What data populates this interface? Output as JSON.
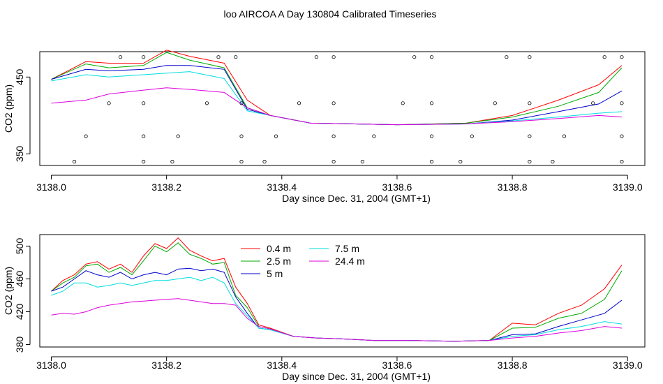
{
  "figure": {
    "title": "loo AIRCOA A  Day 130804  Calibrated Timeseries"
  },
  "chart_data": [
    {
      "type": "line",
      "xlabel": "Day since Dec. 31, 2004 (GMT+1)",
      "ylabel": "CO2 (ppm)",
      "xlim": [
        3137.98,
        3139.03
      ],
      "ylim": [
        335,
        483
      ],
      "x_ticks": [
        "3138.0",
        "3138.2",
        "3138.4",
        "3138.6",
        "3138.8",
        "3139.0"
      ],
      "y_ticks": [
        "350",
        "450"
      ],
      "grid": false,
      "series": [
        {
          "color": "#ff0000",
          "x": [
            3138.0,
            3138.06,
            3138.1,
            3138.16,
            3138.2,
            3138.24,
            3138.3,
            3138.34,
            3138.38,
            3138.45,
            3138.6,
            3138.72,
            3138.8,
            3138.88,
            3138.95,
            3138.99
          ],
          "values": [
            447,
            470,
            468,
            468,
            485,
            477,
            468,
            420,
            400,
            390,
            388,
            390,
            400,
            420,
            440,
            465
          ]
        },
        {
          "color": "#00aa00",
          "x": [
            3138.0,
            3138.06,
            3138.1,
            3138.16,
            3138.2,
            3138.24,
            3138.3,
            3138.34,
            3138.38,
            3138.45,
            3138.6,
            3138.72,
            3138.8,
            3138.88,
            3138.95,
            3138.99
          ],
          "values": [
            447,
            467,
            462,
            465,
            482,
            472,
            462,
            410,
            400,
            390,
            388,
            390,
            398,
            412,
            430,
            462
          ]
        },
        {
          "color": "#0000cc",
          "x": [
            3138.0,
            3138.06,
            3138.1,
            3138.16,
            3138.2,
            3138.24,
            3138.3,
            3138.34,
            3138.38,
            3138.45,
            3138.6,
            3138.72,
            3138.8,
            3138.88,
            3138.95,
            3138.99
          ],
          "values": [
            447,
            460,
            458,
            460,
            465,
            465,
            460,
            408,
            400,
            390,
            388,
            389,
            394,
            405,
            415,
            432
          ]
        },
        {
          "color": "#00dddd",
          "x": [
            3138.0,
            3138.06,
            3138.1,
            3138.16,
            3138.2,
            3138.24,
            3138.3,
            3138.34,
            3138.38,
            3138.45,
            3138.6,
            3138.72,
            3138.8,
            3138.88,
            3138.95,
            3138.99
          ],
          "values": [
            445,
            453,
            450,
            453,
            455,
            457,
            448,
            406,
            400,
            390,
            388,
            389,
            393,
            398,
            403,
            405
          ]
        },
        {
          "color": "#dd00dd",
          "x": [
            3138.0,
            3138.06,
            3138.1,
            3138.16,
            3138.2,
            3138.24,
            3138.3,
            3138.34,
            3138.38,
            3138.45,
            3138.6,
            3138.72,
            3138.8,
            3138.88,
            3138.95,
            3138.99
          ],
          "values": [
            416,
            420,
            428,
            433,
            436,
            434,
            430,
            410,
            400,
            390,
            388,
            389,
            392,
            396,
            400,
            398
          ]
        }
      ],
      "points": {
        "x": [
          3138.12,
          3138.16,
          3138.29,
          3138.32,
          3138.46,
          3138.49,
          3138.63,
          3138.66,
          3138.79,
          3138.83,
          3138.96,
          3138.99,
          3138.1,
          3138.16,
          3138.27,
          3138.33,
          3138.43,
          3138.49,
          3138.61,
          3138.66,
          3138.77,
          3138.83,
          3138.94,
          3138.99,
          3138.06,
          3138.16,
          3138.22,
          3138.33,
          3138.39,
          3138.49,
          3138.56,
          3138.66,
          3138.73,
          3138.83,
          3138.89,
          3138.99,
          3138.04,
          3138.16,
          3138.21,
          3138.33,
          3138.37,
          3138.49,
          3138.54,
          3138.66,
          3138.71,
          3138.83,
          3138.87,
          3138.99
        ],
        "values": [
          476,
          476,
          476,
          476,
          476,
          476,
          476,
          476,
          476,
          476,
          476,
          476,
          416,
          416,
          416,
          416,
          416,
          416,
          416,
          416,
          416,
          416,
          416,
          416,
          373,
          373,
          373,
          373,
          373,
          373,
          373,
          373,
          373,
          373,
          373,
          373,
          340,
          340,
          340,
          340,
          340,
          340,
          340,
          340,
          340,
          340,
          340,
          340
        ]
      }
    },
    {
      "type": "line",
      "xlabel": "Day since Dec. 31, 2004 (GMT+1)",
      "ylabel": "CO2 (ppm)",
      "xlim": [
        3137.98,
        3139.03
      ],
      "ylim": [
        377,
        514
      ],
      "x_ticks": [
        "3138.0",
        "3138.2",
        "3138.4",
        "3138.6",
        "3138.8",
        "3139.0"
      ],
      "y_ticks": [
        "380",
        "420",
        "460",
        "500"
      ],
      "grid": false,
      "legend": {
        "placement": "top-center",
        "entries": [
          {
            "label": "0.4 m",
            "color": "#ff0000"
          },
          {
            "label": "2.5 m",
            "color": "#00aa00"
          },
          {
            "label": "5 m",
            "color": "#0000cc"
          },
          {
            "label": "7.5 m",
            "color": "#00dddd"
          },
          {
            "label": "24.4 m",
            "color": "#dd00dd"
          }
        ]
      },
      "series": [
        {
          "name": "0.4 m",
          "color": "#ff0000",
          "x": [
            3138.0,
            3138.02,
            3138.04,
            3138.06,
            3138.08,
            3138.1,
            3138.12,
            3138.14,
            3138.16,
            3138.18,
            3138.2,
            3138.22,
            3138.24,
            3138.26,
            3138.28,
            3138.3,
            3138.32,
            3138.34,
            3138.36,
            3138.38,
            3138.42,
            3138.46,
            3138.5,
            3138.56,
            3138.62,
            3138.7,
            3138.76,
            3138.8,
            3138.84,
            3138.88,
            3138.92,
            3138.96,
            3138.99
          ],
          "values": [
            445,
            458,
            465,
            478,
            481,
            472,
            478,
            468,
            488,
            503,
            497,
            510,
            495,
            488,
            482,
            485,
            450,
            430,
            404,
            400,
            390,
            388,
            387,
            385,
            385,
            384,
            385,
            406,
            404,
            418,
            428,
            448,
            477
          ]
        },
        {
          "name": "2.5 m",
          "color": "#00aa00",
          "x": [
            3138.0,
            3138.02,
            3138.04,
            3138.06,
            3138.08,
            3138.1,
            3138.12,
            3138.14,
            3138.16,
            3138.18,
            3138.2,
            3138.22,
            3138.24,
            3138.26,
            3138.28,
            3138.3,
            3138.32,
            3138.34,
            3138.36,
            3138.38,
            3138.42,
            3138.46,
            3138.5,
            3138.56,
            3138.62,
            3138.7,
            3138.76,
            3138.8,
            3138.84,
            3138.88,
            3138.92,
            3138.96,
            3138.99
          ],
          "values": [
            445,
            455,
            462,
            476,
            478,
            468,
            474,
            465,
            482,
            500,
            493,
            504,
            490,
            485,
            478,
            480,
            440,
            425,
            402,
            399,
            390,
            388,
            387,
            385,
            385,
            384,
            385,
            400,
            401,
            412,
            418,
            435,
            470
          ]
        },
        {
          "name": "5 m",
          "color": "#0000cc",
          "x": [
            3138.0,
            3138.02,
            3138.04,
            3138.06,
            3138.08,
            3138.1,
            3138.12,
            3138.14,
            3138.16,
            3138.18,
            3138.2,
            3138.22,
            3138.24,
            3138.26,
            3138.28,
            3138.3,
            3138.32,
            3138.34,
            3138.36,
            3138.38,
            3138.42,
            3138.46,
            3138.5,
            3138.56,
            3138.62,
            3138.7,
            3138.76,
            3138.8,
            3138.84,
            3138.88,
            3138.92,
            3138.96,
            3138.99
          ],
          "values": [
            445,
            450,
            460,
            470,
            465,
            462,
            468,
            460,
            465,
            468,
            465,
            472,
            473,
            470,
            472,
            468,
            438,
            418,
            400,
            398,
            390,
            388,
            387,
            385,
            385,
            384,
            385,
            392,
            393,
            402,
            410,
            418,
            434
          ]
        },
        {
          "name": "7.5 m",
          "color": "#00dddd",
          "x": [
            3138.0,
            3138.02,
            3138.04,
            3138.06,
            3138.08,
            3138.1,
            3138.12,
            3138.14,
            3138.16,
            3138.18,
            3138.2,
            3138.22,
            3138.24,
            3138.26,
            3138.28,
            3138.3,
            3138.32,
            3138.34,
            3138.36,
            3138.38,
            3138.42,
            3138.46,
            3138.5,
            3138.56,
            3138.62,
            3138.7,
            3138.76,
            3138.8,
            3138.84,
            3138.88,
            3138.92,
            3138.96,
            3138.99
          ],
          "values": [
            440,
            445,
            455,
            455,
            450,
            452,
            455,
            452,
            455,
            458,
            458,
            460,
            462,
            458,
            462,
            455,
            430,
            415,
            400,
            398,
            390,
            388,
            387,
            385,
            385,
            384,
            385,
            390,
            392,
            398,
            402,
            408,
            405
          ]
        },
        {
          "name": "24.4 m",
          "color": "#dd00dd",
          "x": [
            3138.0,
            3138.02,
            3138.04,
            3138.06,
            3138.08,
            3138.1,
            3138.12,
            3138.14,
            3138.16,
            3138.18,
            3138.2,
            3138.22,
            3138.24,
            3138.26,
            3138.28,
            3138.3,
            3138.32,
            3138.34,
            3138.36,
            3138.38,
            3138.42,
            3138.46,
            3138.5,
            3138.56,
            3138.62,
            3138.7,
            3138.76,
            3138.8,
            3138.84,
            3138.88,
            3138.92,
            3138.96,
            3138.99
          ],
          "values": [
            416,
            418,
            417,
            420,
            425,
            428,
            430,
            432,
            433,
            434,
            435,
            436,
            434,
            432,
            430,
            430,
            428,
            412,
            402,
            399,
            390,
            388,
            387,
            385,
            385,
            384,
            385,
            388,
            390,
            394,
            397,
            402,
            400
          ]
        }
      ]
    }
  ]
}
